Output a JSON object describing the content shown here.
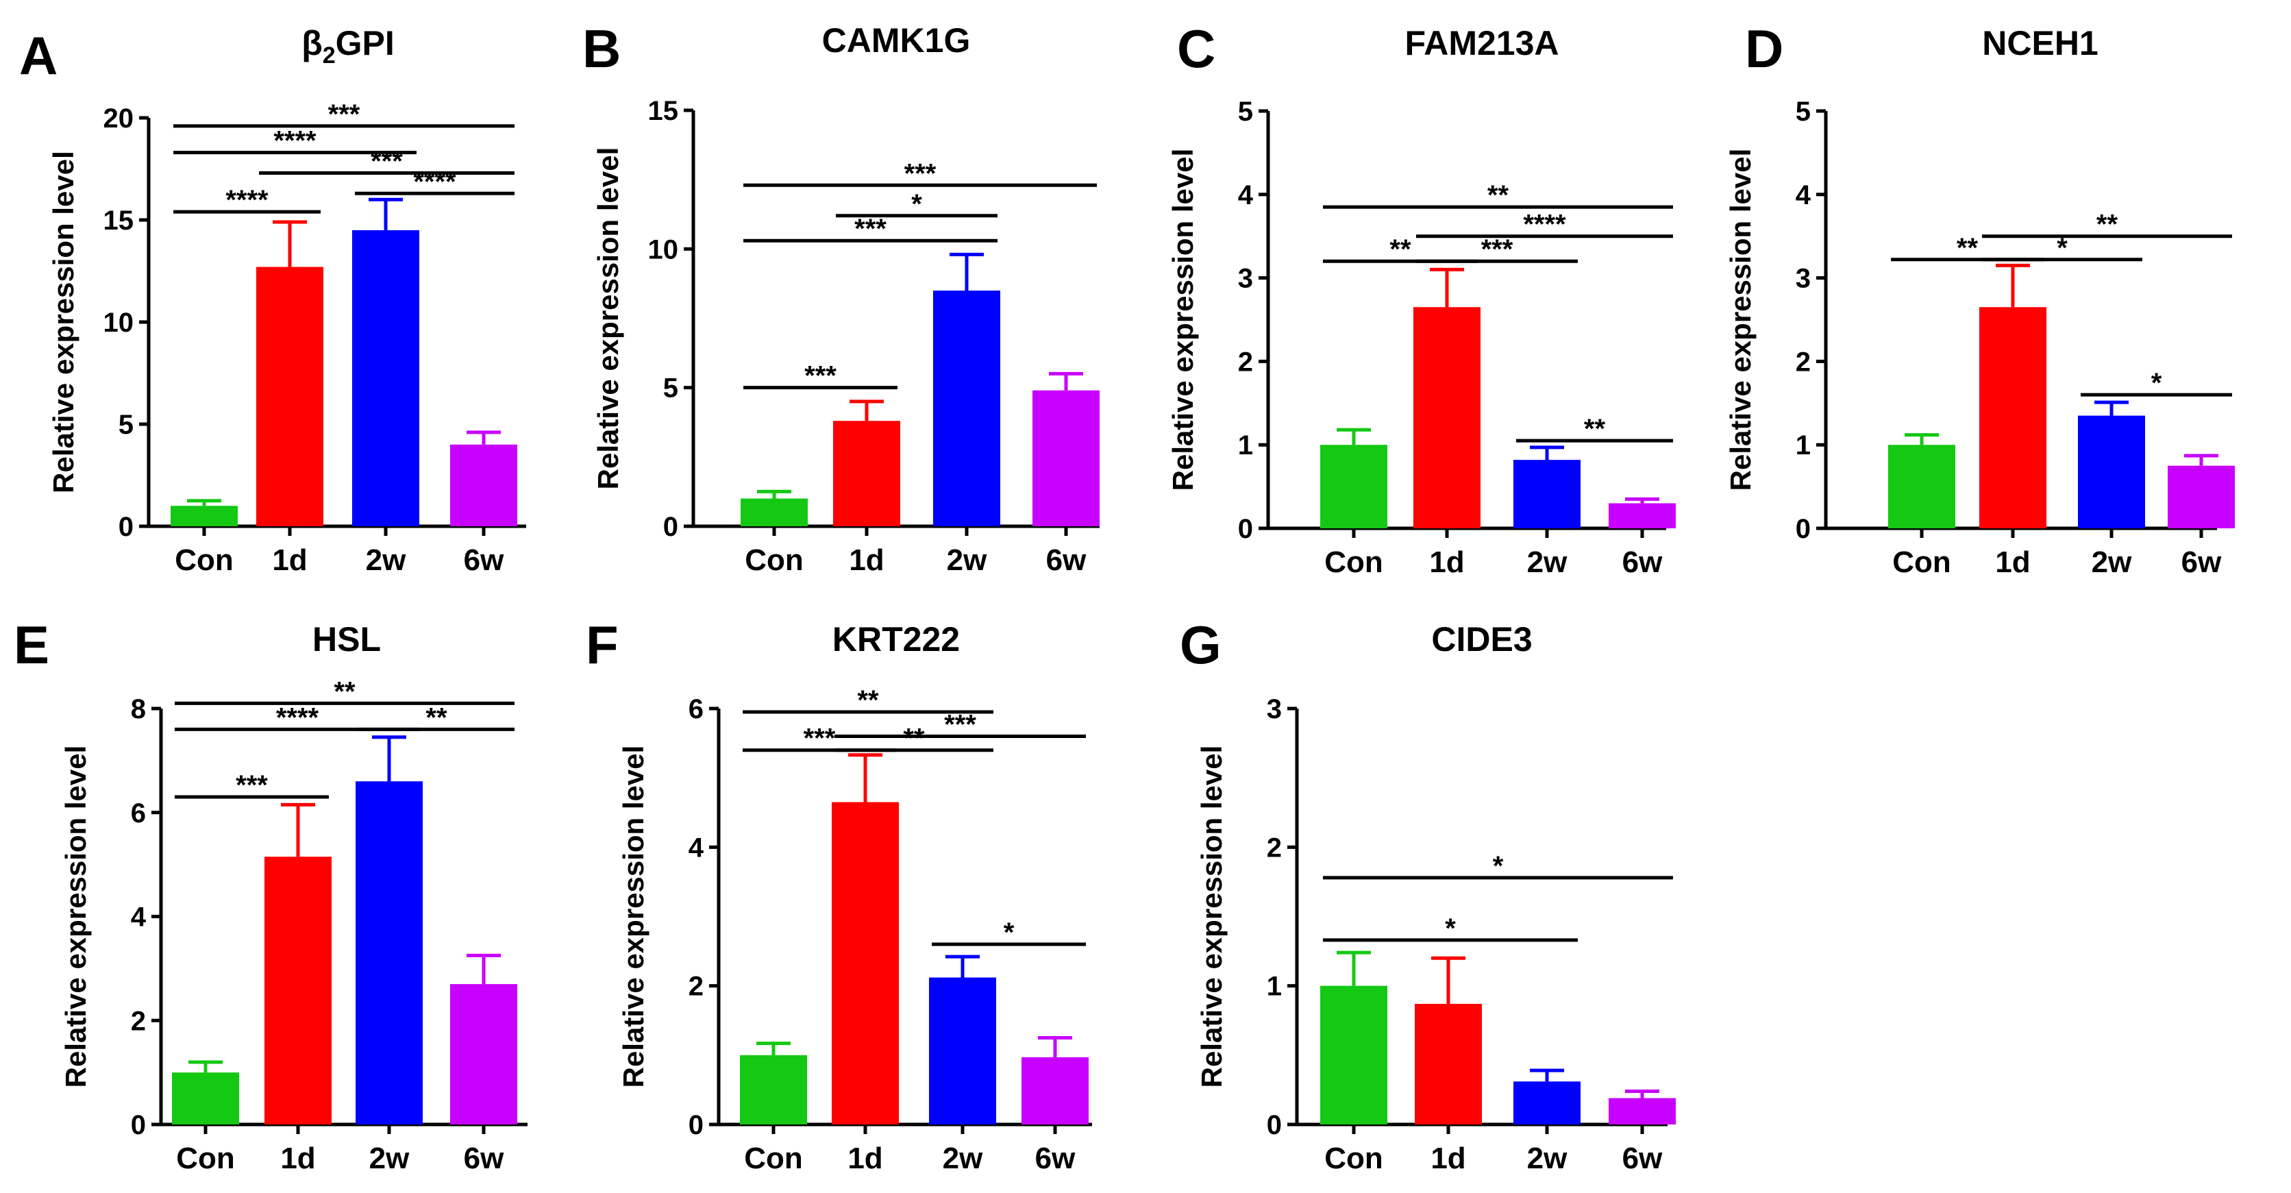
{
  "chart_data": [
    {
      "panel": "A",
      "type": "bar",
      "title": "β₂GPI",
      "title_parts": [
        "β",
        "2",
        "GPI"
      ],
      "ylabel": "Relative expression level",
      "categories": [
        "Con",
        "1d",
        "2w",
        "6w"
      ],
      "values": [
        1.0,
        12.7,
        14.5,
        4.0
      ],
      "errors": [
        0.25,
        2.2,
        1.5,
        0.6
      ],
      "colors": [
        "#14c814",
        "#ff0000",
        "#0000ff",
        "#c800ff"
      ],
      "ylim": [
        0,
        20
      ],
      "yticks": [
        "0",
        "5",
        "10",
        "15",
        "20"
      ],
      "comparisons": [
        {
          "from": 0,
          "to": 3,
          "y": 19.6,
          "label": "***"
        },
        {
          "from": 0,
          "to": 2,
          "y": 18.3,
          "label": "****"
        },
        {
          "from": 1,
          "to": 3,
          "y": 17.3,
          "label": "***"
        },
        {
          "from": 2,
          "to": 3,
          "y": 16.3,
          "label": "****"
        },
        {
          "from": 0,
          "to": 1,
          "y": 15.4,
          "label": "****"
        }
      ]
    },
    {
      "panel": "B",
      "type": "bar",
      "title": "CAMK1G",
      "ylabel": "Relative expression level",
      "categories": [
        "Con",
        "1d",
        "2w",
        "6w"
      ],
      "values": [
        1.0,
        3.8,
        8.5,
        4.9
      ],
      "errors": [
        0.25,
        0.7,
        1.3,
        0.6
      ],
      "colors": [
        "#14c814",
        "#ff0000",
        "#0000ff",
        "#c800ff"
      ],
      "ylim": [
        0,
        15
      ],
      "yticks": [
        "0",
        "5",
        "10",
        "15"
      ],
      "comparisons": [
        {
          "from": 0,
          "to": 3,
          "y": 12.3,
          "label": "***"
        },
        {
          "from": 1,
          "to": 2,
          "y": 11.2,
          "label": "*"
        },
        {
          "from": 0,
          "to": 2,
          "y": 10.3,
          "label": "***"
        },
        {
          "from": 0,
          "to": 1,
          "y": 5.0,
          "label": "***"
        }
      ]
    },
    {
      "panel": "C",
      "type": "bar",
      "title": "FAM213A",
      "ylabel": "Relative expression level",
      "categories": [
        "Con",
        "1d",
        "2w",
        "6w"
      ],
      "values": [
        1.0,
        2.65,
        0.82,
        0.3
      ],
      "errors": [
        0.18,
        0.45,
        0.15,
        0.05
      ],
      "colors": [
        "#14c814",
        "#ff0000",
        "#0000ff",
        "#c800ff"
      ],
      "ylim": [
        0,
        5
      ],
      "yticks": [
        "0",
        "1",
        "2",
        "3",
        "4",
        "5"
      ],
      "comparisons": [
        {
          "from": 0,
          "to": 3,
          "y": 3.85,
          "label": "**"
        },
        {
          "from": 1,
          "to": 3,
          "y": 3.5,
          "label": "****"
        },
        {
          "from": 0,
          "to": 1,
          "y": 3.2,
          "label": "**"
        },
        {
          "from": 1,
          "to": 2,
          "y": 3.2,
          "label": "***"
        },
        {
          "from": 2,
          "to": 3,
          "y": 1.05,
          "label": "**"
        }
      ]
    },
    {
      "panel": "D",
      "type": "bar",
      "title": "NCEH1",
      "ylabel": "Relative expression level",
      "categories": [
        "Con",
        "1d",
        "2w",
        "6w"
      ],
      "values": [
        1.0,
        2.65,
        1.35,
        0.75
      ],
      "errors": [
        0.12,
        0.5,
        0.16,
        0.12
      ],
      "colors": [
        "#14c814",
        "#ff0000",
        "#0000ff",
        "#c800ff"
      ],
      "ylim": [
        0,
        5
      ],
      "yticks": [
        "0",
        "1",
        "2",
        "3",
        "4",
        "5"
      ],
      "comparisons": [
        {
          "from": 1,
          "to": 3,
          "y": 3.5,
          "label": "**"
        },
        {
          "from": 0,
          "to": 1,
          "y": 3.22,
          "label": "**"
        },
        {
          "from": 1,
          "to": 2,
          "y": 3.22,
          "label": "*"
        },
        {
          "from": 2,
          "to": 3,
          "y": 1.6,
          "label": "*"
        }
      ]
    },
    {
      "panel": "E",
      "type": "bar",
      "title": "HSL",
      "ylabel": "Relative expression level",
      "categories": [
        "Con",
        "1d",
        "2w",
        "6w"
      ],
      "values": [
        1.0,
        5.15,
        6.6,
        2.7
      ],
      "errors": [
        0.2,
        1.0,
        0.85,
        0.55
      ],
      "colors": [
        "#14c814",
        "#ff0000",
        "#0000ff",
        "#c800ff"
      ],
      "ylim": [
        0,
        8
      ],
      "yticks": [
        "0",
        "2",
        "4",
        "6",
        "8"
      ],
      "comparisons": [
        {
          "from": 0,
          "to": 3,
          "y": 8.1,
          "label": "**"
        },
        {
          "from": 0,
          "to": 2,
          "y": 7.6,
          "label": "****"
        },
        {
          "from": 2,
          "to": 3,
          "y": 7.6,
          "label": "**"
        },
        {
          "from": 0,
          "to": 1,
          "y": 6.3,
          "label": "***"
        }
      ]
    },
    {
      "panel": "F",
      "type": "bar",
      "title": "KRT222",
      "ylabel": "Relative expression level",
      "categories": [
        "Con",
        "1d",
        "2w",
        "6w"
      ],
      "values": [
        1.0,
        4.65,
        2.12,
        0.97
      ],
      "errors": [
        0.17,
        0.68,
        0.3,
        0.28
      ],
      "colors": [
        "#14c814",
        "#ff0000",
        "#0000ff",
        "#c800ff"
      ],
      "ylim": [
        0,
        6
      ],
      "yticks": [
        "0",
        "2",
        "4",
        "6"
      ],
      "comparisons": [
        {
          "from": 0,
          "to": 2,
          "y": 5.95,
          "label": "**"
        },
        {
          "from": 1,
          "to": 3,
          "y": 5.6,
          "label": "***"
        },
        {
          "from": 0,
          "to": 1,
          "y": 5.4,
          "label": "***"
        },
        {
          "from": 1,
          "to": 2,
          "y": 5.4,
          "label": "**"
        },
        {
          "from": 2,
          "to": 3,
          "y": 2.6,
          "label": "*"
        }
      ]
    },
    {
      "panel": "G",
      "type": "bar",
      "title": "CIDE3",
      "ylabel": "Relative expression level",
      "categories": [
        "Con",
        "1d",
        "2w",
        "6w"
      ],
      "values": [
        1.0,
        0.87,
        0.31,
        0.19
      ],
      "errors": [
        0.24,
        0.33,
        0.08,
        0.05
      ],
      "colors": [
        "#14c814",
        "#ff0000",
        "#0000ff",
        "#c800ff"
      ],
      "ylim": [
        0,
        3
      ],
      "yticks": [
        "0",
        "1",
        "2",
        "3"
      ],
      "comparisons": [
        {
          "from": 0,
          "to": 3,
          "y": 1.78,
          "label": "*"
        },
        {
          "from": 0,
          "to": 2,
          "y": 1.33,
          "label": "*"
        }
      ]
    }
  ]
}
